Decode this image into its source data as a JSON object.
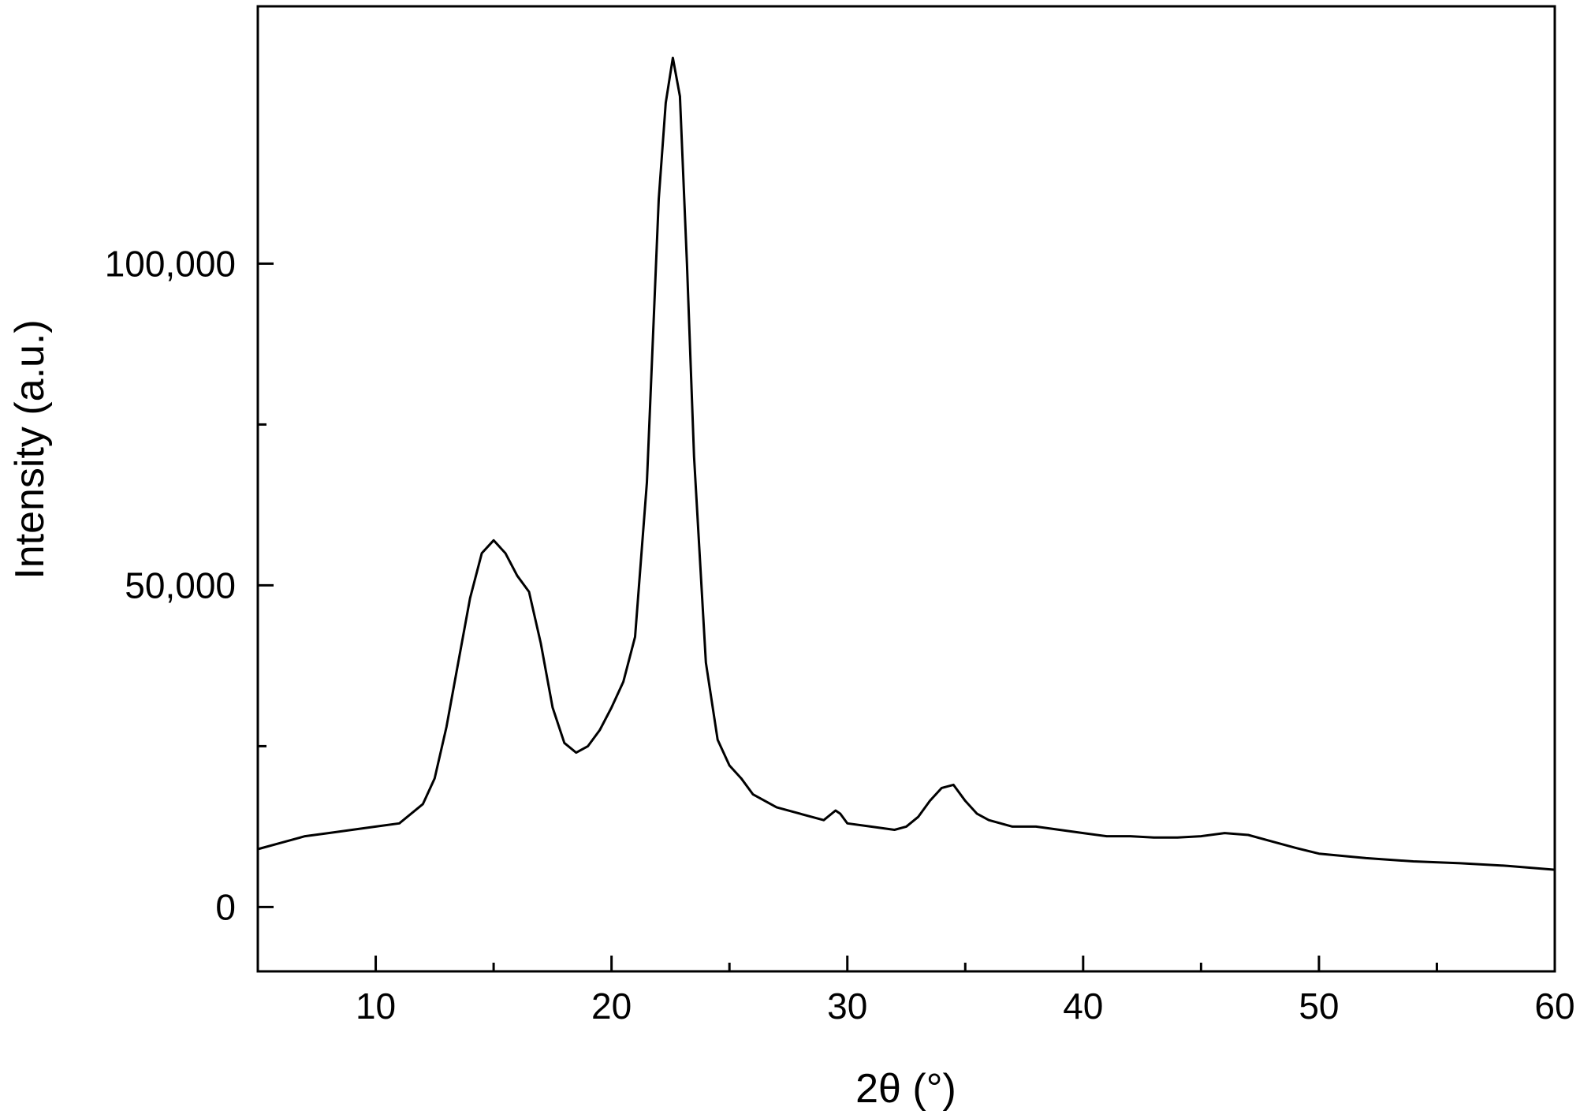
{
  "chart_data": {
    "type": "line",
    "title": "",
    "xlabel": "2θ (°)",
    "ylabel": "Intensity (a.u.)",
    "xlim": [
      5,
      60
    ],
    "ylim": [
      -10000,
      140000
    ],
    "x_ticks": [
      10,
      20,
      30,
      40,
      50,
      60
    ],
    "x_tick_labels": [
      "10",
      "20",
      "30",
      "40",
      "50",
      "60"
    ],
    "x_minor_ticks": [
      15,
      25,
      35,
      45,
      55
    ],
    "y_ticks": [
      0,
      50000,
      100000
    ],
    "y_tick_labels": [
      "0",
      "50,000",
      "100,000"
    ],
    "y_minor_ticks": [
      25000,
      75000
    ],
    "grid": false,
    "line_color": "#000000",
    "series": [
      {
        "x": [
          5,
          6,
          7,
          8,
          9,
          10,
          11,
          12,
          12.5,
          13,
          13.5,
          14,
          14.5,
          15,
          15.5,
          16,
          16.5,
          17,
          17.5,
          18,
          18.5,
          19,
          19.5,
          20,
          20.5,
          21,
          21.5,
          22,
          22.3,
          22.6,
          22.9,
          23.2,
          23.5,
          24,
          24.5,
          25,
          25.5,
          26,
          27,
          28,
          29,
          29.5,
          29.7,
          30,
          31,
          32,
          32.5,
          33,
          33.5,
          34,
          34.5,
          35,
          35.5,
          36,
          37,
          38,
          39,
          40,
          41,
          42,
          43,
          44,
          45,
          46,
          47,
          48,
          49,
          50,
          52,
          54,
          56,
          58,
          60
        ],
        "y": [
          9000,
          10000,
          11000,
          11500,
          12000,
          12500,
          13000,
          16000,
          20000,
          28000,
          38000,
          48000,
          55000,
          57000,
          55000,
          51500,
          49000,
          41000,
          31000,
          25500,
          24000,
          25000,
          27500,
          31000,
          35000,
          42000,
          66000,
          110000,
          125000,
          132000,
          126000,
          100000,
          70000,
          38000,
          26000,
          22000,
          20000,
          17500,
          15500,
          14500,
          13500,
          15000,
          14500,
          13000,
          12500,
          12000,
          12500,
          14000,
          16500,
          18500,
          19000,
          16500,
          14500,
          13500,
          12500,
          12500,
          12000,
          11500,
          11000,
          11000,
          10800,
          10800,
          11000,
          11500,
          11200,
          10200,
          9200,
          8300,
          7600,
          7100,
          6800,
          6400,
          5800
        ]
      }
    ]
  }
}
